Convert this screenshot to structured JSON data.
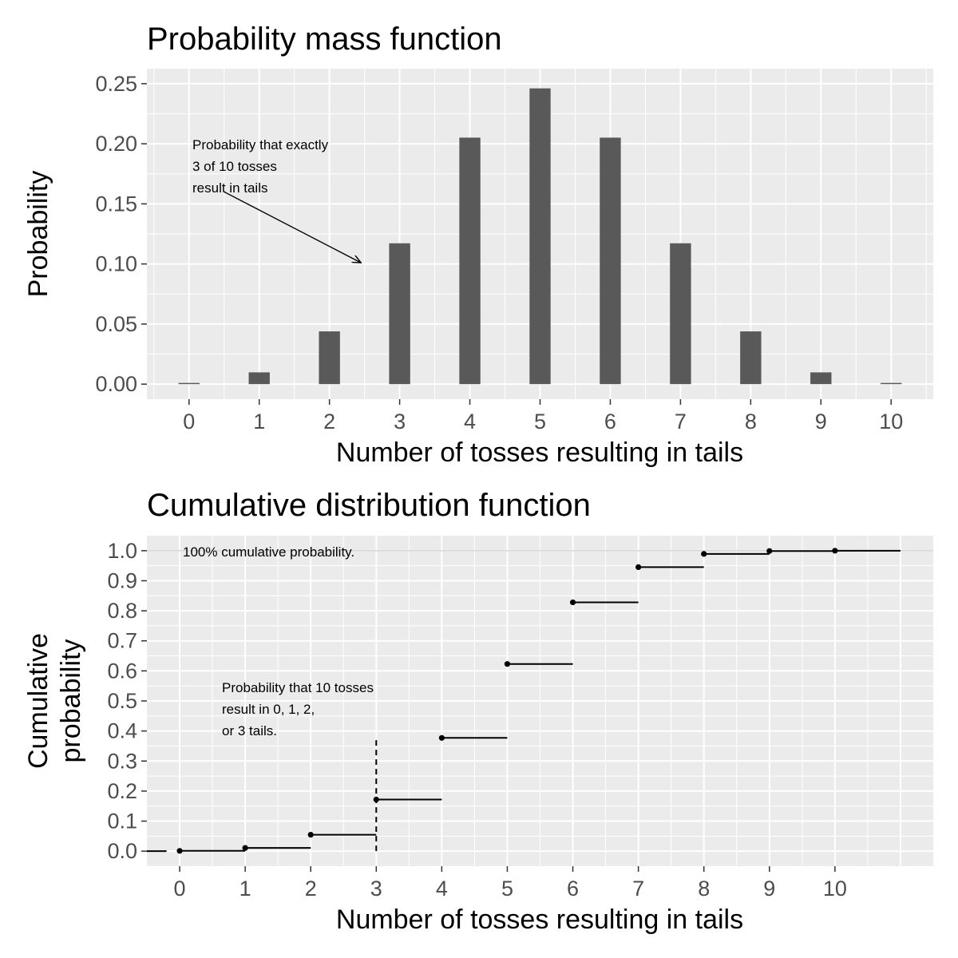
{
  "chart_data": [
    {
      "type": "bar",
      "title": "Probability mass function",
      "xlabel": "Number of tosses resulting in tails",
      "ylabel": "Probability",
      "categories": [
        "0",
        "1",
        "2",
        "3",
        "4",
        "5",
        "6",
        "7",
        "8",
        "9",
        "10"
      ],
      "values": [
        0.001,
        0.0098,
        0.0439,
        0.1172,
        0.2051,
        0.2461,
        0.2051,
        0.1172,
        0.0439,
        0.0098,
        0.001
      ],
      "ylim": [
        0,
        0.25
      ],
      "yticks": [
        "0.00",
        "0.05",
        "0.10",
        "0.15",
        "0.20",
        "0.25"
      ],
      "bar_color": "#595959",
      "panel_color": "#ebebeb",
      "grid": true,
      "annotation": {
        "lines": [
          "Probability that exactly",
          "3 of 10 tosses",
          "result in tails"
        ],
        "arrow_from": [
          0.5,
          0.16
        ],
        "arrow_to": [
          2.45,
          0.101
        ]
      }
    },
    {
      "type": "step",
      "title": "Cumulative distribution function",
      "xlabel": "Number of tosses resulting in tails",
      "ylabel_lines": [
        "Cumulative",
        "probability"
      ],
      "x": [
        0,
        1,
        2,
        3,
        4,
        5,
        6,
        7,
        8,
        9,
        10
      ],
      "values": [
        0.001,
        0.0107,
        0.0547,
        0.1719,
        0.377,
        0.623,
        0.8281,
        0.9453,
        0.9893,
        0.999,
        1.0
      ],
      "xticks": [
        "0",
        "1",
        "2",
        "3",
        "4",
        "5",
        "6",
        "7",
        "8",
        "9",
        "10"
      ],
      "yticks": [
        "0.0",
        "0.1",
        "0.2",
        "0.3",
        "0.4",
        "0.5",
        "0.6",
        "0.7",
        "0.8",
        "0.9",
        "1.0"
      ],
      "xlim": [
        -0.5,
        11.5
      ],
      "ylim": [
        -0.05,
        1.05
      ],
      "vline_x": 3,
      "vline_y": [
        0,
        0.38
      ],
      "reference_line_y": 1.0,
      "panel_color": "#ebebeb",
      "grid": true,
      "annotations": [
        {
          "lines": [
            "100% cumulative probability."
          ],
          "x": 0,
          "y": 1.045
        },
        {
          "lines": [
            "Probability that 10 tosses",
            "result in 0, 1, 2,",
            "or 3 tails."
          ],
          "x": 0.6,
          "y": 0.575
        }
      ]
    }
  ]
}
